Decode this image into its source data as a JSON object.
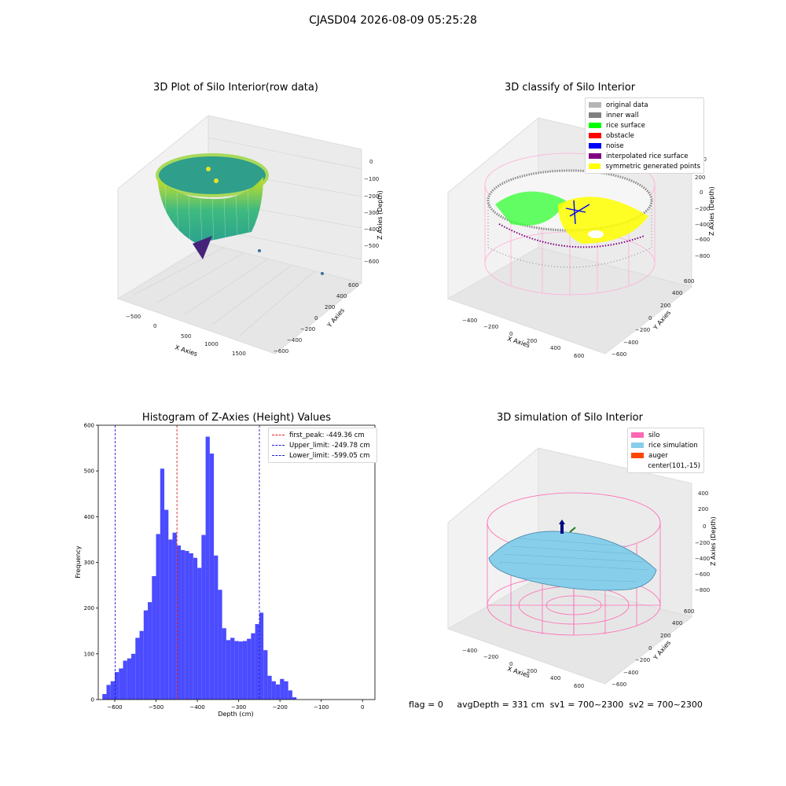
{
  "page": {
    "title": "CJASD04 2026-08-09 05:25:28"
  },
  "colors": {
    "hist_bar": "#4b4bff",
    "peak_line": "#e02020",
    "limit_line": "#2020d0"
  },
  "chart_data": [
    {
      "type": "scatter3d",
      "title": "3D Plot of Silo Interior(row data)",
      "xlabel": "X Axies",
      "ylabel": "Y Axies",
      "zlabel": "Z Axies (Depth)",
      "x_ticks": [
        "−500",
        "0",
        "500",
        "1000",
        "1500"
      ],
      "y_ticks": [
        "−600",
        "−400",
        "−200",
        "0",
        "200",
        "400",
        "600"
      ],
      "z_ticks": [
        "0",
        "−100",
        "−200",
        "−300",
        "−400",
        "−500",
        "−600"
      ],
      "colormap": "viridis"
    },
    {
      "type": "scatter3d",
      "title": "3D classify of Silo Interior",
      "xlabel": "X Axies",
      "ylabel": "Y Axies",
      "zlabel": "Z Axies (Depth)",
      "x_ticks": [
        "−400",
        "−200",
        "0",
        "200",
        "400",
        "600"
      ],
      "y_ticks": [
        "−600",
        "−400",
        "−200",
        "0",
        "200",
        "400",
        "600"
      ],
      "z_ticks": [
        "200",
        "0",
        "−200",
        "−400",
        "−600",
        "−800"
      ],
      "z_top_partial": "00",
      "legend": [
        {
          "label": "original data",
          "color": "#b5b5b5"
        },
        {
          "label": "inner wall",
          "color": "#808080"
        },
        {
          "label": "rice surface",
          "color": "#00ff00"
        },
        {
          "label": "obstacle",
          "color": "#ff0000"
        },
        {
          "label": "noise",
          "color": "#0000ff"
        },
        {
          "label": "interpolated rice surface",
          "color": "#800080"
        },
        {
          "label": "symmetric generated points",
          "color": "#ffff00"
        }
      ]
    },
    {
      "type": "bar",
      "title": "Histogram of Z-Axies (Height) Values",
      "xlabel": "Depth (cm)",
      "ylabel": "Frequency",
      "xlim": [
        -640,
        30
      ],
      "ylim": [
        0,
        600
      ],
      "bin_width": 10,
      "bin_start": -630,
      "x_tick_values": [
        -600,
        -500,
        -400,
        -300,
        -200,
        -100,
        0
      ],
      "x_tick_labels": [
        "−600",
        "−500",
        "−400",
        "−300",
        "−200",
        "−100",
        "0"
      ],
      "y_tick_values": [
        0,
        100,
        200,
        300,
        400,
        500,
        600
      ],
      "y_tick_labels": [
        "0",
        "100",
        "200",
        "300",
        "400",
        "500",
        "600"
      ],
      "values": [
        12,
        32,
        40,
        60,
        68,
        85,
        90,
        100,
        135,
        150,
        195,
        213,
        270,
        362,
        505,
        415,
        350,
        365,
        337,
        327,
        325,
        320,
        310,
        288,
        360,
        575,
        538,
        315,
        240,
        156,
        130,
        135,
        128,
        127,
        128,
        133,
        145,
        165,
        190,
        108,
        52,
        40,
        33,
        45,
        40,
        20,
        5
      ],
      "vlines": [
        {
          "x": -449.36,
          "label": "first_peak: -449.36 cm",
          "color": "#e02020"
        },
        {
          "x": -249.78,
          "label": "Upper_limit: -249.78 cm",
          "color": "#2020d0"
        },
        {
          "x": -599.05,
          "label": "Lower_limit: -599.05 cm",
          "color": "#2020d0"
        }
      ],
      "legend_position": "top-right"
    },
    {
      "type": "surface3d",
      "title": "3D simulation of Silo Interior",
      "xlabel": "X Axies",
      "ylabel": "Y Axies",
      "zlabel": "Z Axies (Depth)",
      "x_ticks": [
        "−400",
        "−200",
        "0",
        "200",
        "400",
        "600"
      ],
      "y_ticks": [
        "−600",
        "−400",
        "−200",
        "0",
        "200",
        "400",
        "600"
      ],
      "z_ticks": [
        "400",
        "200",
        "0",
        "−200",
        "−400",
        "−600",
        "−800"
      ],
      "legend": [
        {
          "label": "silo",
          "color": "#ff69b4"
        },
        {
          "label": "rice simulation",
          "color": "#87ceeb"
        },
        {
          "label": "auger",
          "color": "#ff4500"
        },
        {
          "label": "center(101,-15)",
          "color": ""
        }
      ]
    }
  ],
  "footer": {
    "flag": "flag = 0",
    "avg_depth": "avgDepth = 331 cm",
    "sv1": "sv1 = 700~2300",
    "sv2": "sv2 = 700~2300"
  }
}
